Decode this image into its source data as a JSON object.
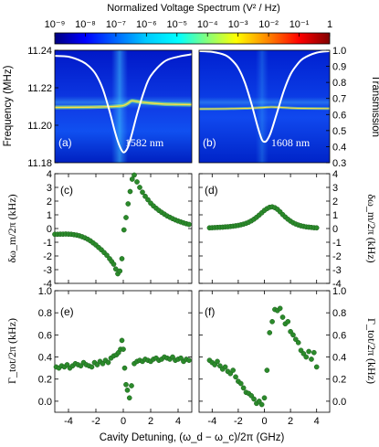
{
  "colorbar": {
    "title": "Normalized Voltage Spectrum (V² / Hz)",
    "ticks": [
      "10⁻⁹",
      "10⁻⁸",
      "10⁻⁷",
      "10⁻⁶",
      "10⁻⁵",
      "10⁻⁴",
      "10⁻³",
      "10⁻²",
      "10⁻¹",
      "1"
    ],
    "colors": [
      "#000080",
      "#0000ff",
      "#0080ff",
      "#00ffff",
      "#80ff80",
      "#ffff00",
      "#ff8000",
      "#ff0000",
      "#800000"
    ]
  },
  "chart_data": [
    {
      "id": "a",
      "type": "heatmap",
      "panel_label": "(a)",
      "wavelength_label": "1582 nm",
      "ylabel_left": "Frequency (MHz)",
      "ylim": [
        11.18,
        11.24
      ],
      "yticks": [
        "11.18",
        "11.20",
        "11.22",
        "11.24"
      ],
      "xlim": [
        -5,
        5
      ],
      "y2lim": [
        0.3,
        1.0
      ],
      "yticks_right": [
        "0.3",
        "0.4",
        "0.5",
        "0.6",
        "0.7",
        "0.8",
        "0.9",
        "1.0"
      ],
      "ylabel_right": "Transmission",
      "mechanical_line": {
        "x": [
          -5,
          -3,
          -2,
          -1,
          -0.5,
          0,
          0.3,
          0.6,
          0.9,
          1.3,
          2,
          3,
          4,
          5
        ],
        "y": [
          11.2095,
          11.2096,
          11.2097,
          11.2099,
          11.2101,
          11.2105,
          11.2115,
          11.213,
          11.2128,
          11.2123,
          11.2118,
          11.2113,
          11.2111,
          11.211
        ]
      },
      "transmission": {
        "x": [
          -5,
          -4,
          -3,
          -2.5,
          -2,
          -1.5,
          -1,
          -0.6,
          -0.3,
          0,
          0.3,
          0.6,
          1,
          1.5,
          2,
          3,
          4,
          5
        ],
        "y": [
          0.965,
          0.96,
          0.93,
          0.9,
          0.85,
          0.76,
          0.62,
          0.49,
          0.41,
          0.365,
          0.39,
          0.47,
          0.6,
          0.74,
          0.84,
          0.93,
          0.96,
          0.975
        ]
      }
    },
    {
      "id": "b",
      "type": "heatmap",
      "panel_label": "(b)",
      "wavelength_label": "1608 nm",
      "ylim": [
        11.18,
        11.24
      ],
      "xlim": [
        -5,
        5
      ],
      "y2lim": [
        0.3,
        1.0
      ],
      "yticks_right": [
        "0.3",
        "0.4",
        "0.5",
        "0.6",
        "0.7",
        "0.8",
        "0.9",
        "1.0"
      ],
      "ylabel_right": "Transmission",
      "mechanical_line": {
        "x": [
          -5,
          -3,
          -1.5,
          -0.5,
          0,
          0.5,
          1,
          1.5,
          2,
          3,
          5
        ],
        "y": [
          11.2087,
          11.2088,
          11.209,
          11.2093,
          11.2095,
          11.2097,
          11.2096,
          11.2094,
          11.2092,
          11.209,
          11.2089
        ]
      },
      "transmission": {
        "x": [
          -5,
          -4,
          -3,
          -2.5,
          -2,
          -1.5,
          -1,
          -0.5,
          -0.2,
          0,
          0.2,
          0.5,
          1,
          1.5,
          2,
          2.5,
          3,
          4,
          5
        ],
        "y": [
          0.995,
          0.99,
          0.97,
          0.94,
          0.89,
          0.8,
          0.67,
          0.52,
          0.445,
          0.43,
          0.44,
          0.49,
          0.62,
          0.75,
          0.85,
          0.91,
          0.95,
          0.985,
          0.995
        ]
      }
    },
    {
      "id": "c",
      "type": "scatter",
      "panel_label": "(c)",
      "xlim": [
        -5,
        5
      ],
      "ylim": [
        -4,
        4
      ],
      "yticks": [
        "-4",
        "-3",
        "-2",
        "-1",
        "0",
        "1",
        "2",
        "3",
        "4"
      ],
      "ylabel": "δω_m/2π (kHz)",
      "x": [
        -5,
        -4.8,
        -4.6,
        -4.4,
        -4.2,
        -4,
        -3.8,
        -3.6,
        -3.4,
        -3.2,
        -3,
        -2.8,
        -2.6,
        -2.4,
        -2.2,
        -2,
        -1.8,
        -1.6,
        -1.4,
        -1.2,
        -1,
        -0.85,
        -0.7,
        -0.55,
        -0.4,
        -0.25,
        -0.1,
        0.05,
        0.2,
        0.35,
        0.5,
        0.65,
        0.8,
        1,
        1.2,
        1.4,
        1.6,
        1.8,
        2,
        2.2,
        2.4,
        2.6,
        2.8,
        3,
        3.2,
        3.4,
        3.6,
        3.8,
        4,
        4.2,
        4.4,
        4.6,
        4.8
      ],
      "y": [
        -0.42,
        -0.42,
        -0.41,
        -0.41,
        -0.4,
        -0.41,
        -0.42,
        -0.45,
        -0.48,
        -0.53,
        -0.6,
        -0.68,
        -0.78,
        -0.9,
        -1.05,
        -1.2,
        -1.38,
        -1.55,
        -1.75,
        -1.95,
        -2.2,
        -2.4,
        -2.6,
        -2.95,
        -3.3,
        -3.1,
        -2.2,
        -0.1,
        0.8,
        1.8,
        2.7,
        3.6,
        3.9,
        3.4,
        3.0,
        2.65,
        2.35,
        2.1,
        1.85,
        1.65,
        1.48,
        1.32,
        1.18,
        1.05,
        0.92,
        0.82,
        0.72,
        0.63,
        0.55,
        0.48,
        0.41,
        0.35,
        0.3
      ]
    },
    {
      "id": "d",
      "type": "scatter",
      "panel_label": "(d)",
      "xlim": [
        -5,
        5
      ],
      "ylim": [
        -4,
        4
      ],
      "yticks_right": [
        "-4",
        "-3",
        "-2",
        "-1",
        "0",
        "1",
        "2",
        "3",
        "4"
      ],
      "ylabel_right": "δω_m/2π (kHz)",
      "x": [
        -4.2,
        -4,
        -3.8,
        -3.6,
        -3.4,
        -3.2,
        -3,
        -2.8,
        -2.6,
        -2.4,
        -2.2,
        -2,
        -1.8,
        -1.6,
        -1.4,
        -1.2,
        -1,
        -0.8,
        -0.6,
        -0.4,
        -0.2,
        0,
        0.2,
        0.4,
        0.6,
        0.8,
        1,
        1.2,
        1.4,
        1.6,
        1.8,
        2,
        2.2,
        2.4,
        2.6,
        2.8,
        3,
        3.2,
        3.4,
        3.6,
        3.8,
        4
      ],
      "y": [
        0.05,
        0.06,
        0.07,
        0.08,
        0.09,
        0.1,
        0.12,
        0.13,
        0.15,
        0.17,
        0.2,
        0.23,
        0.27,
        0.32,
        0.38,
        0.46,
        0.56,
        0.68,
        0.82,
        0.98,
        1.15,
        1.32,
        1.45,
        1.55,
        1.58,
        1.52,
        1.4,
        1.22,
        1.02,
        0.84,
        0.68,
        0.54,
        0.42,
        0.33,
        0.26,
        0.2,
        0.16,
        0.12,
        0.1,
        0.08,
        0.06,
        0.05
      ]
    },
    {
      "id": "e",
      "type": "scatter",
      "panel_label": "(e)",
      "xlim": [
        -5,
        5
      ],
      "xticks": [
        "-4",
        "-2",
        "0",
        "2",
        "4"
      ],
      "ylim": [
        -0.1,
        1.0
      ],
      "yticks": [
        "0.0",
        "0.2",
        "0.4",
        "0.6",
        "0.8",
        "1.0"
      ],
      "ylabel": "Γ_tot/2π (kHz)",
      "x": [
        -4.9,
        -4.7,
        -4.5,
        -4.3,
        -4.1,
        -3.9,
        -3.7,
        -3.5,
        -3.3,
        -3.1,
        -2.9,
        -2.7,
        -2.5,
        -2.3,
        -2.1,
        -1.9,
        -1.7,
        -1.5,
        -1.3,
        -1.1,
        -0.9,
        -0.7,
        -0.5,
        -0.35,
        -0.2,
        -0.1,
        0,
        0.1,
        0.2,
        0.3,
        0.45,
        0.6,
        0.8,
        1,
        1.2,
        1.4,
        1.6,
        1.8,
        2,
        2.2,
        2.4,
        2.6,
        2.8,
        3,
        3.2,
        3.4,
        3.6,
        3.8,
        4,
        4.2,
        4.4,
        4.6,
        4.8
      ],
      "y": [
        0.31,
        0.3,
        0.32,
        0.31,
        0.33,
        0.3,
        0.32,
        0.34,
        0.33,
        0.32,
        0.35,
        0.33,
        0.32,
        0.31,
        0.35,
        0.33,
        0.36,
        0.34,
        0.37,
        0.35,
        0.39,
        0.41,
        0.42,
        0.44,
        0.47,
        0.55,
        0.47,
        0.3,
        0.15,
        0.1,
        0.03,
        0.14,
        0.34,
        0.36,
        0.37,
        0.36,
        0.38,
        0.37,
        0.36,
        0.38,
        0.39,
        0.37,
        0.38,
        0.4,
        0.39,
        0.38,
        0.4,
        0.37,
        0.38,
        0.39,
        0.36,
        0.38,
        0.37
      ]
    },
    {
      "id": "f",
      "type": "scatter",
      "panel_label": "(f)",
      "xlim": [
        -5,
        5
      ],
      "xticks": [
        "-4",
        "-2",
        "0",
        "2",
        "4"
      ],
      "ylim": [
        -0.1,
        1.0
      ],
      "yticks_right": [
        "0.0",
        "0.2",
        "0.4",
        "0.6",
        "0.8",
        "1.0"
      ],
      "ylabel_right": "Γ_tot/2π (kHz)",
      "x": [
        -4.2,
        -4,
        -3.8,
        -3.6,
        -3.4,
        -3.2,
        -3,
        -2.8,
        -2.6,
        -2.4,
        -2.2,
        -2,
        -1.8,
        -1.6,
        -1.4,
        -1.2,
        -1,
        -0.8,
        -0.6,
        -0.4,
        -0.2,
        0,
        0.2,
        0.4,
        0.6,
        0.8,
        1,
        1.2,
        1.4,
        1.6,
        1.8,
        2,
        2.2,
        2.4,
        2.6,
        2.8,
        3,
        3.2,
        3.4,
        3.6,
        3.8,
        4
      ],
      "y": [
        0.37,
        0.35,
        0.33,
        0.36,
        0.32,
        0.29,
        0.31,
        0.27,
        0.25,
        0.28,
        0.22,
        0.18,
        0.16,
        0.12,
        0.08,
        0.07,
        0.05,
        0.02,
        -0.02,
        0.0,
        -0.03,
        0.03,
        0.28,
        0.62,
        0.72,
        0.83,
        0.82,
        0.84,
        0.76,
        0.7,
        0.72,
        0.63,
        0.6,
        0.56,
        0.53,
        0.46,
        0.43,
        0.4,
        0.45,
        0.38,
        0.44,
        0.31
      ]
    }
  ],
  "xlabel": "Cavity Detuning, (ω_d − ω_c)/2π (GHz)",
  "colors": {
    "dots": "#2b8a2b",
    "dot_edge": "#1c601c",
    "transmission": "#ffffff"
  }
}
